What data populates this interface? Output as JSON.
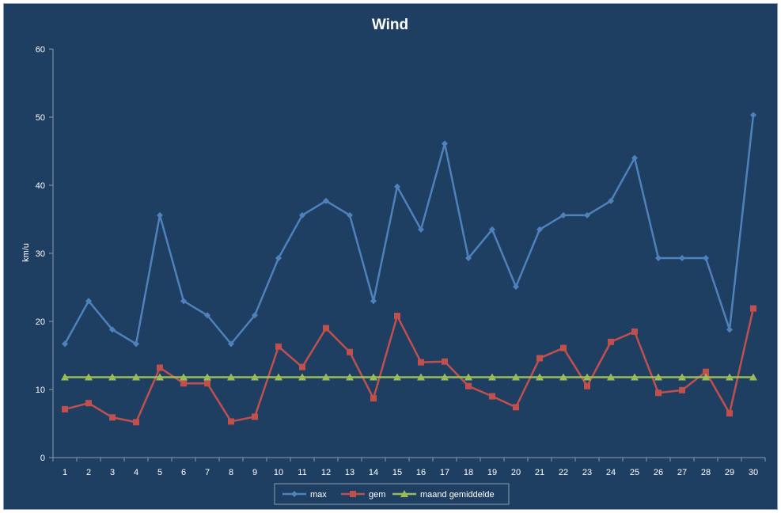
{
  "chart_data": {
    "type": "line",
    "title": "Wind",
    "xlabel": "",
    "ylabel": "km/u",
    "ylim": [
      0,
      60
    ],
    "yticks": [
      0,
      10,
      20,
      30,
      40,
      50,
      60
    ],
    "categories": [
      "1",
      "2",
      "3",
      "4",
      "5",
      "6",
      "7",
      "8",
      "9",
      "10",
      "11",
      "12",
      "13",
      "14",
      "15",
      "16",
      "17",
      "18",
      "19",
      "20",
      "21",
      "22",
      "23",
      "24",
      "25",
      "26",
      "27",
      "28",
      "29",
      "30"
    ],
    "series": [
      {
        "name": "max",
        "color": "#4f81bd",
        "marker": "diamond",
        "values": [
          16.7,
          23.0,
          18.8,
          16.7,
          35.6,
          23.0,
          20.9,
          16.7,
          20.9,
          29.3,
          35.6,
          37.7,
          35.6,
          23.0,
          39.8,
          33.5,
          46.1,
          29.3,
          33.5,
          25.1,
          33.5,
          35.6,
          35.6,
          37.7,
          44.0,
          29.3,
          29.3,
          29.3,
          18.8,
          50.3
        ]
      },
      {
        "name": "gem",
        "color": "#c0504d",
        "marker": "square",
        "values": [
          7.1,
          8.0,
          5.9,
          5.2,
          13.2,
          10.9,
          10.9,
          5.3,
          6.0,
          16.3,
          13.3,
          19.0,
          15.5,
          8.7,
          20.8,
          14.0,
          14.1,
          10.5,
          9.0,
          7.4,
          14.6,
          16.1,
          10.5,
          17.0,
          18.5,
          9.5,
          9.9,
          12.6,
          6.5,
          21.9
        ]
      },
      {
        "name": "maand gemiddelde",
        "color": "#9bbb59",
        "marker": "triangle",
        "values": [
          11.8,
          11.8,
          11.8,
          11.8,
          11.8,
          11.8,
          11.8,
          11.8,
          11.8,
          11.8,
          11.8,
          11.8,
          11.8,
          11.8,
          11.8,
          11.8,
          11.8,
          11.8,
          11.8,
          11.8,
          11.8,
          11.8,
          11.8,
          11.8,
          11.8,
          11.8,
          11.8,
          11.8,
          11.8,
          11.8
        ]
      }
    ],
    "grid": false,
    "legend": "bottom"
  }
}
